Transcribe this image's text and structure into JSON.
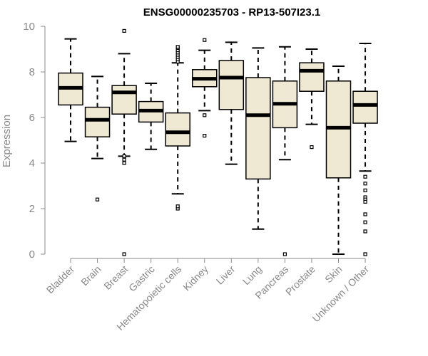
{
  "chart_data": {
    "type": "boxplot",
    "title": "ENSG00000235703 - RP13-507I23.1",
    "xlabel": "",
    "ylabel": "Expression",
    "ylim": [
      0,
      10
    ],
    "yticks": [
      0,
      2,
      4,
      6,
      8,
      10
    ],
    "categories": [
      "Bladder",
      "Brain",
      "Breast",
      "Gastric",
      "Hematopoietic cells",
      "Kidney",
      "Liver",
      "Lung",
      "Pancreas",
      "Prostate",
      "Skin",
      "Unknown / Other"
    ],
    "boxes": [
      {
        "name": "Bladder",
        "whisker_low": 4.95,
        "q1": 6.55,
        "median": 7.3,
        "q3": 7.95,
        "whisker_high": 9.45,
        "outliers": []
      },
      {
        "name": "Brain",
        "whisker_low": 4.2,
        "q1": 5.15,
        "median": 5.9,
        "q3": 6.45,
        "whisker_high": 7.8,
        "outliers": [
          2.4
        ]
      },
      {
        "name": "Breast",
        "whisker_low": 4.3,
        "q1": 6.15,
        "median": 7.1,
        "q3": 7.4,
        "whisker_high": 8.8,
        "outliers": [
          9.8,
          4.0,
          4.15,
          4.3,
          0.0
        ]
      },
      {
        "name": "Gastric",
        "whisker_low": 4.6,
        "q1": 5.8,
        "median": 6.3,
        "q3": 6.7,
        "whisker_high": 7.5,
        "outliers": []
      },
      {
        "name": "Hematopoietic cells",
        "whisker_low": 2.65,
        "q1": 4.75,
        "median": 5.35,
        "q3": 6.2,
        "whisker_high": 8.4,
        "outliers": [
          8.45,
          8.55,
          8.65,
          8.75,
          8.85,
          8.95,
          9.05,
          9.1,
          2.0,
          2.1
        ]
      },
      {
        "name": "Kidney",
        "whisker_low": 6.3,
        "q1": 7.35,
        "median": 7.7,
        "q3": 8.1,
        "whisker_high": 8.95,
        "outliers": [
          9.4,
          6.1,
          5.2
        ]
      },
      {
        "name": "Liver",
        "whisker_low": 3.95,
        "q1": 6.35,
        "median": 7.75,
        "q3": 8.5,
        "whisker_high": 9.3,
        "outliers": []
      },
      {
        "name": "Lung",
        "whisker_low": 1.1,
        "q1": 3.3,
        "median": 6.1,
        "q3": 7.75,
        "whisker_high": 9.05,
        "outliers": []
      },
      {
        "name": "Pancreas",
        "whisker_low": 4.15,
        "q1": 5.55,
        "median": 6.6,
        "q3": 7.6,
        "whisker_high": 9.1,
        "outliers": [
          0.0
        ]
      },
      {
        "name": "Prostate",
        "whisker_low": 5.7,
        "q1": 7.15,
        "median": 8.05,
        "q3": 8.4,
        "whisker_high": 9.0,
        "outliers": [
          4.7
        ]
      },
      {
        "name": "Skin",
        "whisker_low": 0.0,
        "q1": 3.35,
        "median": 5.55,
        "q3": 7.6,
        "whisker_high": 8.25,
        "outliers": []
      },
      {
        "name": "Unknown / Other",
        "whisker_low": 3.65,
        "q1": 5.75,
        "median": 6.55,
        "q3": 7.15,
        "whisker_high": 9.25,
        "outliers": [
          3.4,
          3.1,
          2.8,
          2.5,
          2.4,
          2.3,
          1.75,
          1.4,
          1.0,
          0.0
        ]
      }
    ]
  },
  "colors": {
    "box_fill": "#efe8d2",
    "box_stroke": "#000000",
    "axis": "#888888"
  }
}
